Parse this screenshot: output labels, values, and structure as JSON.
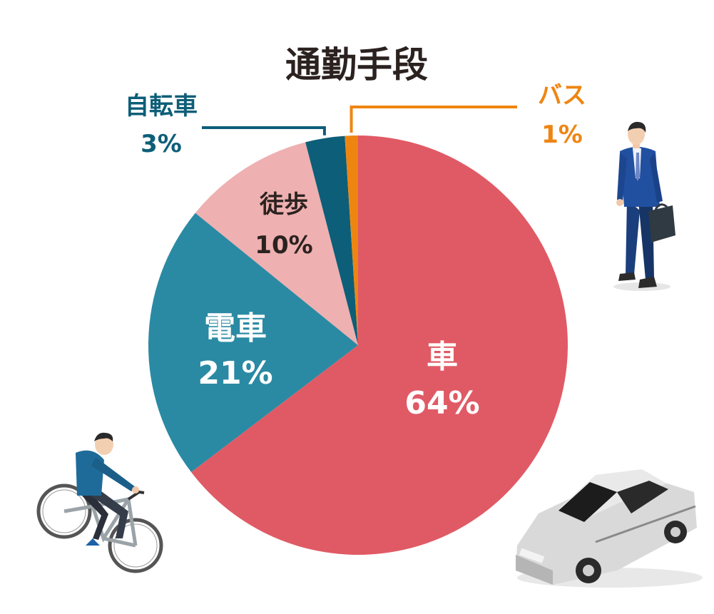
{
  "chart_data": {
    "type": "pie",
    "title": "通勤手段",
    "slices": [
      {
        "name": "車",
        "value": 64,
        "label": "64%",
        "color": "#e05a65",
        "label_color": "#ffffff"
      },
      {
        "name": "電車",
        "value": 21,
        "label": "21%",
        "color": "#2a8aa3",
        "label_color": "#ffffff"
      },
      {
        "name": "徒歩",
        "value": 10,
        "label": "10%",
        "color": "#eeb0b0",
        "label_color": "#2b2220"
      },
      {
        "name": "自転車",
        "value": 3,
        "label": "3%",
        "color": "#0d5e78",
        "label_color": "#0d5e78"
      },
      {
        "name": "バス",
        "value": 1,
        "label": "1%",
        "color": "#ef8511",
        "label_color": "#ef8511"
      }
    ],
    "legend": "none"
  },
  "illustrations": {
    "businessman": "businessman-icon",
    "cyclist": "cyclist-icon",
    "car": "car-icon"
  }
}
